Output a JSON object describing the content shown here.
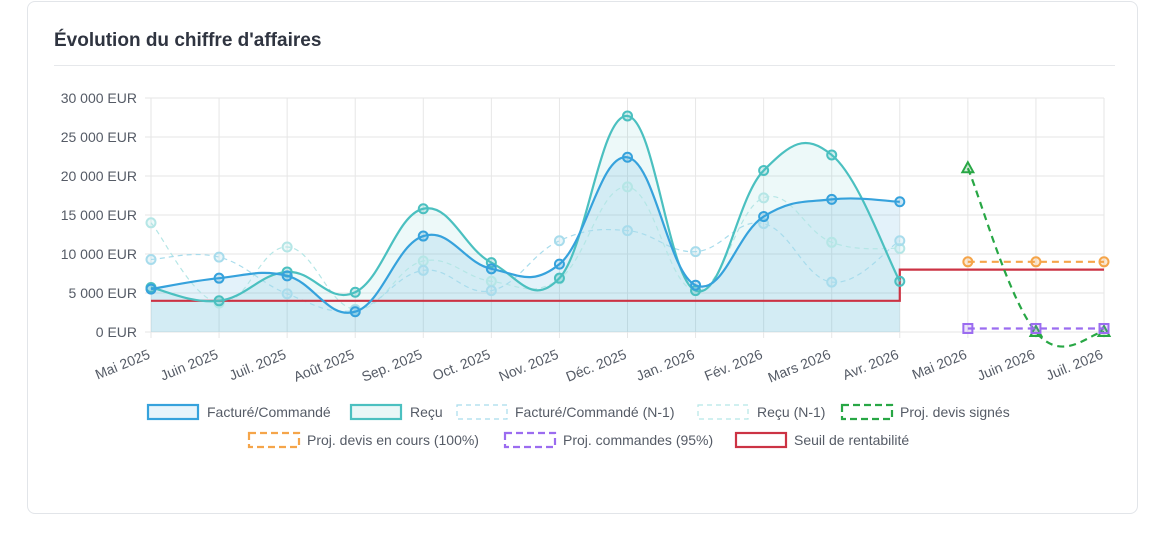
{
  "card": {
    "title": "Évolution du chiffre d'affaires"
  },
  "chart_data": {
    "type": "line",
    "title": "Évolution du chiffre d'affaires",
    "x": [
      "Mai 2025",
      "Juin 2025",
      "Juil. 2025",
      "Août 2025",
      "Sep. 2025",
      "Oct. 2025",
      "Nov. 2025",
      "Déc. 2025",
      "Jan. 2026",
      "Fév. 2026",
      "Mars 2026",
      "Avr. 2026",
      "Mai 2026",
      "Juin 2026",
      "Juil. 2026"
    ],
    "y_ticks": [
      "0 EUR",
      "5 000 EUR",
      "10 000 EUR",
      "15 000 EUR",
      "20 000 EUR",
      "25 000 EUR",
      "30 000 EUR"
    ],
    "ylim": [
      0,
      30000
    ],
    "grid": true,
    "legend_position": "bottom",
    "series": [
      {
        "name": "Facturé/Commandé",
        "color": "#36a2dc",
        "style": "solid",
        "fill": true,
        "marker": "circle",
        "values": [
          5500,
          6900,
          7200,
          2600,
          12300,
          8100,
          8700,
          22400,
          6000,
          14800,
          17000,
          16700,
          null,
          null,
          null
        ]
      },
      {
        "name": "Reçu",
        "color": "#4bc0c0",
        "style": "solid",
        "fill": true,
        "marker": "circle",
        "values": [
          5700,
          4000,
          7700,
          5100,
          15800,
          8900,
          6900,
          27700,
          5300,
          20700,
          22700,
          6500,
          null,
          null,
          null
        ]
      },
      {
        "name": "Facturé/Commandé (N-1)",
        "color": "#a8dcec",
        "style": "dashed",
        "fill": false,
        "marker": "circle",
        "values": [
          9300,
          9600,
          4900,
          2800,
          7900,
          5300,
          11700,
          13000,
          10300,
          13900,
          6400,
          11700,
          null,
          null,
          null
        ]
      },
      {
        "name": "Reçu (N-1)",
        "color": "#b5e6e6",
        "style": "dashed",
        "fill": false,
        "marker": "circle",
        "values": [
          14000,
          3700,
          10900,
          2900,
          9100,
          6500,
          6800,
          18600,
          5300,
          17200,
          11500,
          10700,
          null,
          null,
          null
        ]
      },
      {
        "name": "Proj. devis signés",
        "color": "#28a745",
        "style": "dashed",
        "fill": false,
        "marker": "triangle",
        "values": [
          null,
          null,
          null,
          null,
          null,
          null,
          null,
          null,
          null,
          null,
          null,
          null,
          21000,
          0,
          0
        ]
      },
      {
        "name": "Proj. devis en cours (100%)",
        "color": "#f5a54a",
        "style": "dashed",
        "fill": false,
        "marker": "circle",
        "values": [
          null,
          null,
          null,
          null,
          null,
          null,
          null,
          null,
          null,
          null,
          null,
          null,
          9000,
          9000,
          9000
        ]
      },
      {
        "name": "Proj. commandes (95%)",
        "color": "#9b6cf0",
        "style": "dashed",
        "fill": false,
        "marker": "square",
        "values": [
          null,
          null,
          null,
          null,
          null,
          null,
          null,
          null,
          null,
          null,
          null,
          null,
          450,
          450,
          450
        ]
      },
      {
        "name": "Seuil de rentabilité",
        "color": "#cc3344",
        "style": "step",
        "fill": false,
        "marker": "none",
        "values": [
          4000,
          4000,
          4000,
          4000,
          4000,
          4000,
          4000,
          4000,
          4000,
          4000,
          4000,
          4000,
          8000,
          8000,
          8000
        ]
      }
    ]
  }
}
